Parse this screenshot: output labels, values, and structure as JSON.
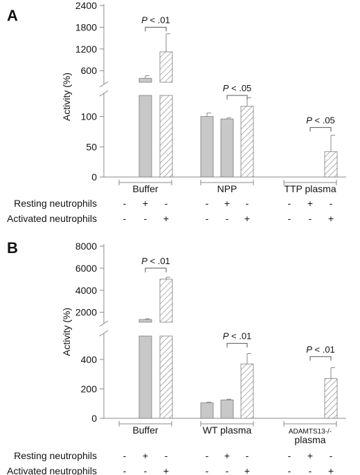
{
  "colors": {
    "gray_bar": "#c8c8c8",
    "hatch_stroke": "#7a7a7a",
    "axis": "#888888",
    "text": "#111111"
  },
  "row_labels": {
    "resting": "Resting neutrophils",
    "activated": "Activated neutrophils"
  },
  "sign_rows": {
    "resting": [
      "-",
      "+",
      "-",
      "-",
      "+",
      "-",
      "-",
      "+",
      "-"
    ],
    "activated": [
      "-",
      "-",
      "+",
      "-",
      "-",
      "+",
      "-",
      "-",
      "+"
    ]
  },
  "chart_data": [
    {
      "panel": "A",
      "type": "bar",
      "ylabel": "Activity (%)",
      "y_break": true,
      "lower_ticks": [
        0,
        50,
        100
      ],
      "upper_ticks": [
        600,
        1200,
        1800,
        2400
      ],
      "ylim_lower": [
        0,
        135
      ],
      "ylim_upper": [
        280,
        2400
      ],
      "groups": [
        {
          "label": "Buffer",
          "bars": [
            {
              "style": "none",
              "value": null
            },
            {
              "style": "gray",
              "value": 390,
              "error": 70
            },
            {
              "style": "hatched",
              "value": 1120,
              "error": 500
            }
          ]
        },
        {
          "label": "NPP",
          "bars": [
            {
              "style": "gray",
              "value": 100,
              "error": 6
            },
            {
              "style": "gray",
              "value": 96,
              "error": 2
            },
            {
              "style": "hatched",
              "value": 117,
              "error": 14
            }
          ]
        },
        {
          "label": "TTP plasma",
          "bars": [
            {
              "style": "none",
              "value": null
            },
            {
              "style": "none",
              "value": null
            },
            {
              "style": "hatched",
              "value": 42,
              "error": 27
            }
          ]
        }
      ],
      "annotations": [
        {
          "text": "P < .01",
          "group": 0,
          "from": 1,
          "to": 2,
          "y": 1800
        },
        {
          "text": "P < .05",
          "group": 1,
          "from": 1,
          "to": 2,
          "y": 135
        },
        {
          "text": "P < .05",
          "group": 2,
          "from": 1,
          "to": 2,
          "y": 82
        }
      ]
    },
    {
      "panel": "B",
      "type": "bar",
      "ylabel": "Activity (%)",
      "y_break": true,
      "lower_ticks": [
        0,
        200,
        400
      ],
      "upper_ticks": [
        2000,
        4000,
        6000,
        8000
      ],
      "ylim_lower": [
        0,
        560
      ],
      "ylim_upper": [
        1100,
        8000
      ],
      "groups": [
        {
          "label": "Buffer",
          "bars": [
            {
              "style": "none",
              "value": null
            },
            {
              "style": "gray",
              "value": 1350,
              "error": 60
            },
            {
              "style": "hatched",
              "value": 5000,
              "error": 180
            }
          ]
        },
        {
          "label": "WT plasma",
          "bars": [
            {
              "style": "gray",
              "value": 105,
              "error": 5
            },
            {
              "style": "gray",
              "value": 125,
              "error": 5
            },
            {
              "style": "hatched",
              "value": 370,
              "error": 70
            }
          ]
        },
        {
          "label": "ADAMTS13-/-",
          "label2": "plasma",
          "bars": [
            {
              "style": "none",
              "value": null
            },
            {
              "style": "none",
              "value": null
            },
            {
              "style": "hatched",
              "value": 270,
              "error": 75
            }
          ]
        }
      ],
      "annotations": [
        {
          "text": "P < .01",
          "group": 0,
          "from": 1,
          "to": 2,
          "y": 6000
        },
        {
          "text": "P < .01",
          "group": 1,
          "from": 1,
          "to": 2,
          "y": 510
        },
        {
          "text": "P < .01",
          "group": 2,
          "from": 1,
          "to": 2,
          "y": 420
        }
      ]
    }
  ]
}
